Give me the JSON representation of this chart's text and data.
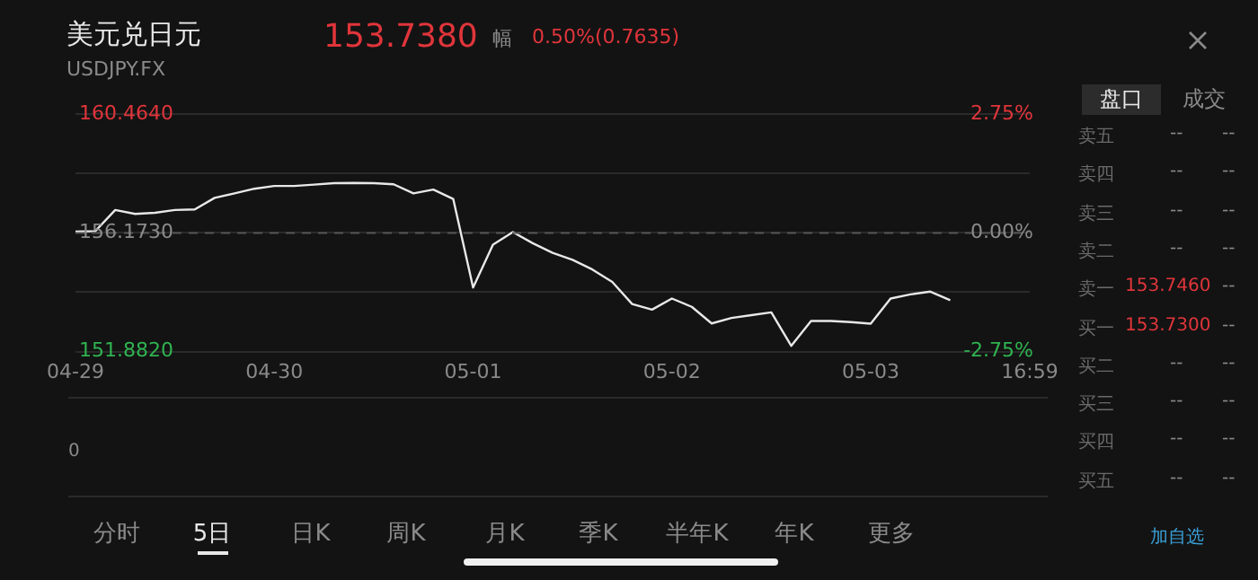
{
  "chart_data": {
    "type": "line",
    "title": "美元兑日元",
    "subtitle": "USDJPY.FX",
    "categories": [
      "04-29",
      null,
      null,
      null,
      null,
      null,
      null,
      null,
      null,
      null,
      "04-30",
      null,
      null,
      null,
      null,
      null,
      null,
      null,
      null,
      null,
      "05-01",
      null,
      null,
      null,
      null,
      null,
      null,
      null,
      null,
      null,
      "05-02",
      null,
      null,
      null,
      null,
      null,
      null,
      null,
      null,
      null,
      "05-03",
      null,
      null,
      null,
      null,
      null,
      null,
      null,
      "16:59"
    ],
    "series": [
      {
        "color": "#e8e8e8",
        "values": [
          156.22,
          156.24,
          157.0,
          156.86,
          156.9,
          157.0,
          157.02,
          157.44,
          157.6,
          157.77,
          157.87,
          157.87,
          157.92,
          157.97,
          157.98,
          157.97,
          157.93,
          157.6,
          157.74,
          157.4,
          154.2,
          155.75,
          156.2,
          155.8,
          155.45,
          155.2,
          154.85,
          154.4,
          153.6,
          153.4,
          153.8,
          153.5,
          152.9,
          153.1,
          153.2,
          153.3,
          152.09,
          152.99,
          152.99,
          152.95,
          152.89,
          153.8,
          153.95,
          154.05,
          153.74,
          null,
          null,
          null,
          null
        ]
      }
    ],
    "ylim": [
      151.882,
      160.464
    ],
    "yticks": [
      {
        "value": 151.882,
        "label": "151.8820"
      },
      {
        "value": 154.0275,
        "label": null
      },
      {
        "value": 156.173,
        "label": "156.1730"
      },
      {
        "value": 158.3185,
        "label": null
      },
      {
        "value": 160.464,
        "label": "160.4640"
      }
    ],
    "y2lim": [
      -2.75,
      2.75
    ],
    "y2ticks": [
      {
        "value": -2.75,
        "label": "-2.75%"
      },
      {
        "value": 0,
        "label": "0.00%"
      },
      {
        "value": 2.75,
        "label": "2.75%"
      }
    ],
    "ref_lines": [
      {
        "axis": "y",
        "value": 156.173,
        "line_style": "dashed",
        "color": "#555555"
      }
    ],
    "grid": "y",
    "legend": false,
    "marker": "none",
    "line_style": "solid",
    "annotations": [
      "153.7380",
      "幅",
      "0.50%(0.7635)",
      "盘口",
      "成交",
      "卖五 -- --",
      "卖四 -- --",
      "卖三 -- --",
      "卖二 -- --",
      "卖一 153.7460 --",
      "买一 153.7300 --",
      "买二 -- --",
      "买三 -- --",
      "买四 -- --",
      "买五 -- --",
      "0",
      "分时",
      "5日",
      "日K",
      "周K",
      "月K",
      "季K",
      "半年K",
      "年K",
      "更多",
      "加自选"
    ]
  }
}
